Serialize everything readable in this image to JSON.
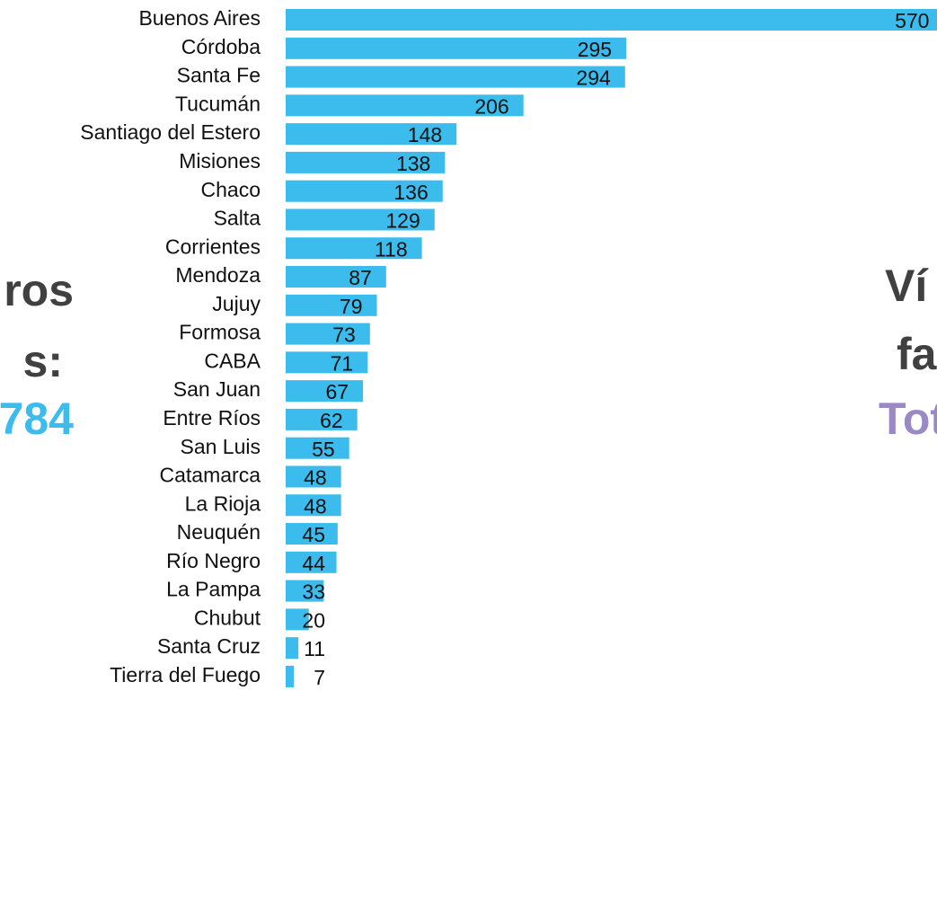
{
  "chart_data": {
    "type": "bar",
    "orientation": "horizontal",
    "categories": [
      "Buenos Aires",
      "Córdoba",
      "Santa Fe",
      "Tucumán",
      "Santiago del Estero",
      "Misiones",
      "Chaco",
      "Salta",
      "Corrientes",
      "Mendoza",
      "Jujuy",
      "Formosa",
      "CABA",
      "San Juan",
      "Entre Ríos",
      "San Luis",
      "Catamarca",
      "La Rioja",
      "Neuquén",
      "Río Negro",
      "La Pampa",
      "Chubut",
      "Santa Cruz",
      "Tierra del Fuego"
    ],
    "values": [
      570,
      295,
      294,
      206,
      148,
      138,
      136,
      129,
      118,
      87,
      79,
      73,
      71,
      67,
      62,
      55,
      48,
      48,
      45,
      44,
      33,
      20,
      11,
      7
    ],
    "color": "#3bbcec",
    "annotations": [
      "ros",
      "s:",
      "784",
      "Ví",
      "fa",
      "Tot"
    ]
  }
}
